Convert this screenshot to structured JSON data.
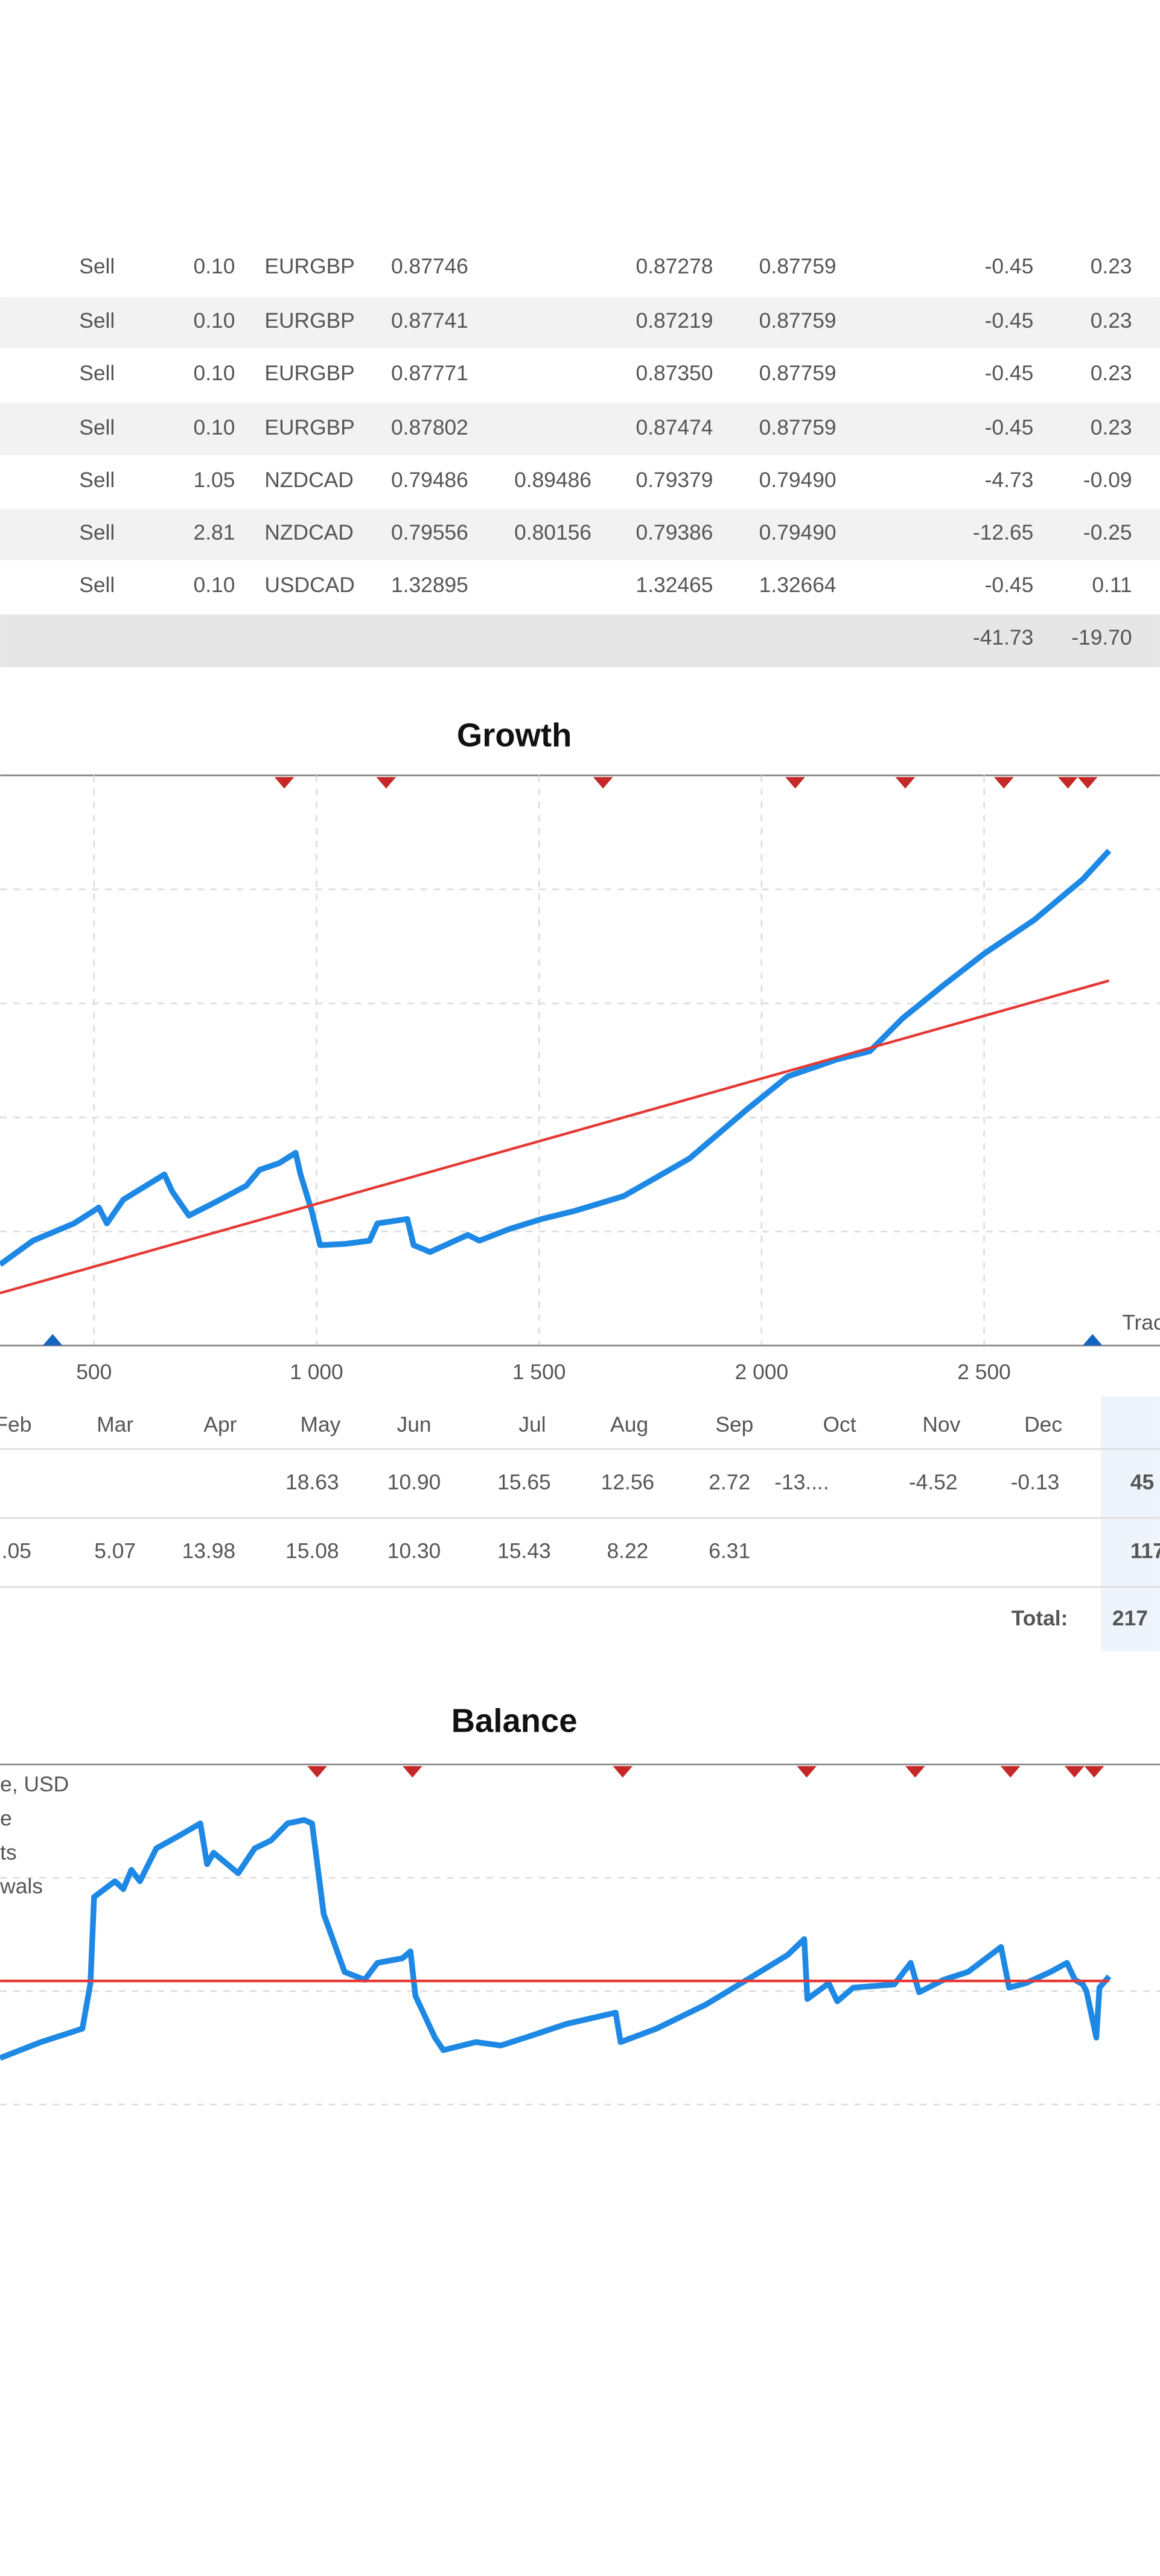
{
  "trades": {
    "rows": [
      [
        "Sell",
        "0.10",
        "EURGBP",
        "0.87746",
        null,
        "0.87278",
        "0.87759",
        "-0.45",
        "0.23"
      ],
      [
        "Sell",
        "0.10",
        "EURGBP",
        "0.87741",
        null,
        "0.87219",
        "0.87759",
        "-0.45",
        "0.23"
      ],
      [
        "Sell",
        "0.10",
        "EURGBP",
        "0.87771",
        null,
        "0.87350",
        "0.87759",
        "-0.45",
        "0.23"
      ],
      [
        "Sell",
        "0.10",
        "EURGBP",
        "0.87802",
        null,
        "0.87474",
        "0.87759",
        "-0.45",
        "0.23"
      ],
      [
        "Sell",
        "1.05",
        "NZDCAD",
        "0.79486",
        "0.89486",
        "0.79379",
        "0.79490",
        "-4.73",
        "-0.09"
      ],
      [
        "Sell",
        "2.81",
        "NZDCAD",
        "0.79556",
        "0.80156",
        "0.79386",
        "0.79490",
        "-12.65",
        "-0.25"
      ],
      [
        "Sell",
        "0.10",
        "USDCAD",
        "1.32895",
        null,
        "1.32465",
        "1.32664",
        "-0.45",
        "0.11"
      ]
    ],
    "totals": [
      "-41.73",
      "-19.70"
    ]
  },
  "monthly": {
    "headers": [
      "Feb",
      "Mar",
      "Apr",
      "May",
      "Jun",
      "Jul",
      "Aug",
      "Sep",
      "Oct",
      "Nov",
      "Dec"
    ],
    "rows": [
      [
        null,
        null,
        null,
        "18.63",
        "10.90",
        "15.65",
        "12.56",
        "2.72",
        "-13....",
        "-4.52",
        "-0.13",
        "45"
      ],
      [
        ".05",
        "5.07",
        "13.98",
        "15.08",
        "10.30",
        "15.43",
        "8.22",
        "6.31",
        null,
        null,
        null,
        "117"
      ]
    ],
    "total_label": "Total:",
    "total": "217"
  },
  "chart_data": [
    {
      "type": "line",
      "title": "Growth",
      "legend_text": "Trac",
      "xlim": [
        289,
        2895
      ],
      "ylim": [
        0,
        5
      ],
      "yticks": [
        1,
        2,
        3,
        4
      ],
      "xticks": [
        500,
        {
          "value": 1000,
          "label": "1 000"
        },
        {
          "value": 1500,
          "label": "1 500"
        },
        {
          "value": 2000,
          "label": "2 000"
        },
        {
          "value": 2500,
          "label": "2 500"
        }
      ],
      "series": [
        {
          "name": null,
          "color": "#1e88e5",
          "x": [
            289,
            363,
            455,
            511,
            529,
            566,
            658,
            676,
            713,
            769,
            842,
            872,
            916,
            953,
            964,
            990,
            1008,
            1063,
            1119,
            1137,
            1204,
            1218,
            1255,
            1340,
            1366,
            1432,
            1506,
            1580,
            1690,
            1838,
            1967,
            2059,
            2170,
            2243,
            2317,
            2409,
            2501,
            2612,
            2722,
            2781
          ],
          "values": [
            0.71,
            0.92,
            1.07,
            1.21,
            1.07,
            1.28,
            1.5,
            1.35,
            1.14,
            1.25,
            1.4,
            1.54,
            1.6,
            1.69,
            1.5,
            1.17,
            0.88,
            0.89,
            0.92,
            1.07,
            1.11,
            0.88,
            0.82,
            0.97,
            0.92,
            1.02,
            1.11,
            1.18,
            1.31,
            1.64,
            2.07,
            2.36,
            2.51,
            2.58,
            2.87,
            3.16,
            3.44,
            3.73,
            4.09,
            4.34
          ]
        },
        {
          "name": null,
          "color": "#e53935",
          "x": [
            289,
            2781
          ],
          "values": [
            0.46,
            3.2
          ]
        }
      ]
    },
    {
      "type": "line",
      "title": "Balance",
      "xlim": [
        289,
        2895
      ],
      "ylim": [
        0,
        4
      ],
      "yticks": [
        1,
        2,
        3
      ],
      "series": [
        {
          "name": "e, USD",
          "color": "#1e88e5",
          "x": [
            289,
            381,
            474,
            492,
            500,
            547,
            566,
            584,
            603,
            640,
            695,
            739,
            754,
            769,
            824,
            861,
            898,
            935,
            972,
            990,
            1016,
            1063,
            1108,
            1137,
            1193,
            1211,
            1222,
            1266,
            1285,
            1358,
            1414,
            1469,
            1561,
            1672,
            1683,
            1764,
            1874,
            1967,
            2059,
            2096,
            2103,
            2151,
            2170,
            2206,
            2298,
            2335,
            2354,
            2409,
            2464,
            2538,
            2556,
            2593,
            2649,
            2686,
            2704,
            2722,
            2730,
            2752,
            2759,
            2781
          ],
          "values": [
            1.41,
            1.55,
            1.67,
            2.07,
            2.83,
            2.97,
            2.9,
            3.07,
            2.97,
            3.26,
            3.38,
            3.48,
            3.12,
            3.22,
            3.04,
            3.26,
            3.33,
            3.48,
            3.51,
            3.48,
            2.68,
            2.17,
            2.1,
            2.25,
            2.29,
            2.35,
            1.96,
            1.59,
            1.48,
            1.55,
            1.52,
            1.59,
            1.71,
            1.81,
            1.55,
            1.67,
            1.88,
            2.1,
            2.32,
            2.46,
            1.93,
            2.07,
            1.91,
            2.03,
            2.06,
            2.25,
            1.99,
            2.1,
            2.17,
            2.39,
            2.03,
            2.07,
            2.17,
            2.25,
            2.1,
            2.06,
            2.0,
            1.59,
            2.03,
            2.13
          ]
        },
        {
          "name": "e",
          "color": "#e53935",
          "x": [
            289,
            2781
          ],
          "values": [
            2.09,
            2.09
          ]
        }
      ],
      "legend_extra": [
        {
          "name": "ts",
          "color": "#43a047"
        },
        {
          "name": "wals",
          "color": "#b71c1c"
        }
      ]
    }
  ]
}
